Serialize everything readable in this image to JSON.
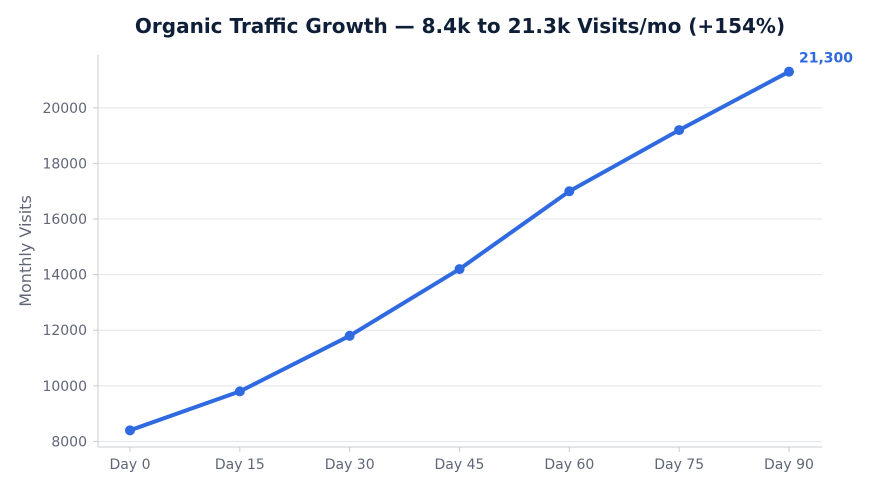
{
  "chart_data": {
    "type": "line",
    "title": "Organic Traffic Growth — 8.4k to 21.3k Visits/mo (+154%)",
    "xlabel": "",
    "ylabel": "Monthly Visits",
    "categories": [
      "Day 0",
      "Day 15",
      "Day 30",
      "Day 45",
      "Day 60",
      "Day 75",
      "Day 90"
    ],
    "series": [
      {
        "values": [
          8400,
          9800,
          11800,
          14200,
          17000,
          19200,
          21300
        ]
      }
    ],
    "ylim": [
      7800,
      21900
    ],
    "yticks": [
      8000,
      10000,
      12000,
      14000,
      16000,
      18000,
      20000
    ],
    "annotation": {
      "text": "21,300",
      "category": "Day 90",
      "value": 21300
    },
    "grid": "horizontal",
    "line_color": "#2f6ae0",
    "title_color": "#0f1f38",
    "text_color": "#5f6676",
    "grid_color": "#e3e5e8",
    "axis_color": "#c8ccd2"
  }
}
